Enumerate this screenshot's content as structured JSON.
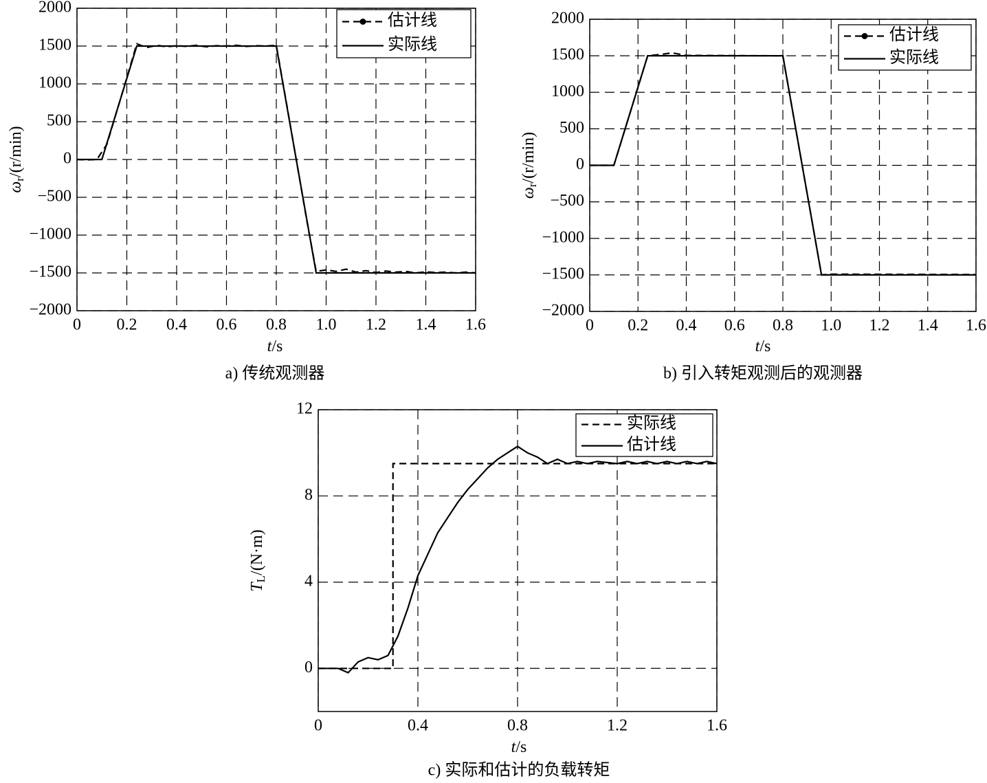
{
  "chart_data": [
    {
      "type": "line",
      "caption": "a) 传统观测器",
      "ylabel": {
        "symbol": "ω",
        "sub": "r",
        "rest": "/(r/min)"
      },
      "xlabel": {
        "symbol": "t",
        "rest": "/s"
      },
      "xlim": [
        0,
        1.6
      ],
      "ylim": [
        -2000,
        2000
      ],
      "xticks": [
        0,
        0.2,
        0.4,
        0.6,
        0.8,
        {
          "value": 1.0,
          "label": "1.0"
        },
        1.2,
        1.4,
        1.6
      ],
      "yticks": [
        {
          "value": -2000,
          "label": "−2000"
        },
        {
          "value": -1500,
          "label": "−1500"
        },
        {
          "value": -1000,
          "label": "−1000"
        },
        {
          "value": -500,
          "label": "−500"
        },
        0,
        500,
        1000,
        1500,
        2000
      ],
      "grid": true,
      "legend": "upper right",
      "series": [
        {
          "name": "估计线",
          "color": "#000000",
          "style": "dashed",
          "marker": "dot",
          "x": [
            0,
            0.04,
            0.08,
            0.12,
            0.16,
            0.2,
            0.24,
            0.28,
            0.32,
            0.36,
            0.4,
            0.44,
            0.48,
            0.52,
            0.56,
            0.6,
            0.64,
            0.68,
            0.72,
            0.76,
            0.8,
            0.84,
            0.88,
            0.92,
            0.96,
            1.0,
            1.04,
            1.08,
            1.12,
            1.16,
            1.2,
            1.24,
            1.28,
            1.32,
            1.36,
            1.4,
            1.44,
            1.48,
            1.52,
            1.56,
            1.6
          ],
          "values": [
            0,
            -5,
            0,
            200,
            640,
            1080,
            1530,
            1480,
            1510,
            1490,
            1505,
            1495,
            1510,
            1490,
            1505,
            1500,
            1510,
            1495,
            1505,
            1500,
            1510,
            760,
            0,
            -760,
            -1480,
            -1460,
            -1480,
            -1450,
            -1490,
            -1470,
            -1495,
            -1475,
            -1490,
            -1480,
            -1500,
            -1485,
            -1495,
            -1490,
            -1500,
            -1490,
            -1500
          ]
        },
        {
          "name": "实际线",
          "color": "#000000",
          "style": "solid",
          "x": [
            0,
            0.1,
            0.24,
            0.8,
            0.96,
            1.6
          ],
          "values": [
            0,
            0,
            1500,
            1500,
            -1500,
            -1500
          ]
        }
      ]
    },
    {
      "type": "line",
      "caption": "b) 引入转矩观测后的观测器",
      "ylabel": {
        "symbol": "ω",
        "sub": "r",
        "rest": "/(r/min)"
      },
      "xlabel": {
        "symbol": "t",
        "rest": "/s"
      },
      "xlim": [
        0,
        1.6
      ],
      "ylim": [
        -2000,
        2000
      ],
      "xticks": [
        0,
        0.2,
        0.4,
        0.6,
        0.8,
        {
          "value": 1.0,
          "label": "1.0"
        },
        1.2,
        1.4,
        1.6
      ],
      "yticks": [
        {
          "value": -2000,
          "label": "−2000"
        },
        {
          "value": -1500,
          "label": "−1500"
        },
        {
          "value": -1000,
          "label": "−1000"
        },
        {
          "value": -500,
          "label": "−500"
        },
        0,
        500,
        1000,
        1500,
        2000
      ],
      "grid": true,
      "legend": "upper right",
      "series": [
        {
          "name": "估计线",
          "color": "#000000",
          "style": "dashed",
          "marker": "dot",
          "x": [
            0,
            0.1,
            0.24,
            0.3,
            0.34,
            0.4,
            0.8,
            0.96,
            1.0,
            1.6
          ],
          "values": [
            0,
            0,
            1500,
            1520,
            1540,
            1505,
            1500,
            -1500,
            -1490,
            -1495
          ]
        },
        {
          "name": "实际线",
          "color": "#000000",
          "style": "solid",
          "x": [
            0,
            0.1,
            0.24,
            0.8,
            0.96,
            1.6
          ],
          "values": [
            0,
            0,
            1500,
            1500,
            -1500,
            -1500
          ]
        }
      ]
    },
    {
      "type": "line",
      "caption": "c) 实际和估计的负载转矩",
      "ylabel": {
        "symbol": "T",
        "sub": "L",
        "rest": "/(N·m)"
      },
      "xlabel": {
        "symbol": "t",
        "rest": "/s"
      },
      "xlim": [
        0,
        1.6
      ],
      "ylim": [
        -2,
        12
      ],
      "xticks": [
        0,
        0.4,
        0.8,
        1.2,
        1.6
      ],
      "yticks": [
        0,
        4,
        8,
        12
      ],
      "grid": true,
      "legend": "upper right",
      "series": [
        {
          "name": "实际线",
          "color": "#000000",
          "style": "dashed",
          "x": [
            0,
            0.3,
            0.3,
            1.6
          ],
          "values": [
            0,
            0,
            9.5,
            9.5
          ]
        },
        {
          "name": "估计线",
          "color": "#000000",
          "style": "solid",
          "x": [
            0,
            0.04,
            0.08,
            0.12,
            0.16,
            0.2,
            0.24,
            0.28,
            0.32,
            0.36,
            0.4,
            0.44,
            0.48,
            0.52,
            0.56,
            0.6,
            0.64,
            0.68,
            0.72,
            0.76,
            0.8,
            0.84,
            0.88,
            0.92,
            0.96,
            1.0,
            1.04,
            1.08,
            1.12,
            1.16,
            1.2,
            1.24,
            1.28,
            1.32,
            1.36,
            1.4,
            1.44,
            1.48,
            1.52,
            1.56,
            1.6
          ],
          "values": [
            0,
            0,
            0,
            -0.2,
            0.3,
            0.5,
            0.4,
            0.6,
            1.5,
            2.8,
            4.3,
            5.3,
            6.3,
            7.0,
            7.7,
            8.3,
            8.8,
            9.3,
            9.7,
            10.0,
            10.3,
            10.0,
            9.8,
            9.5,
            9.7,
            9.5,
            9.6,
            9.5,
            9.6,
            9.55,
            9.5,
            9.6,
            9.5,
            9.6,
            9.5,
            9.6,
            9.5,
            9.6,
            9.5,
            9.6,
            9.5
          ]
        }
      ]
    }
  ]
}
